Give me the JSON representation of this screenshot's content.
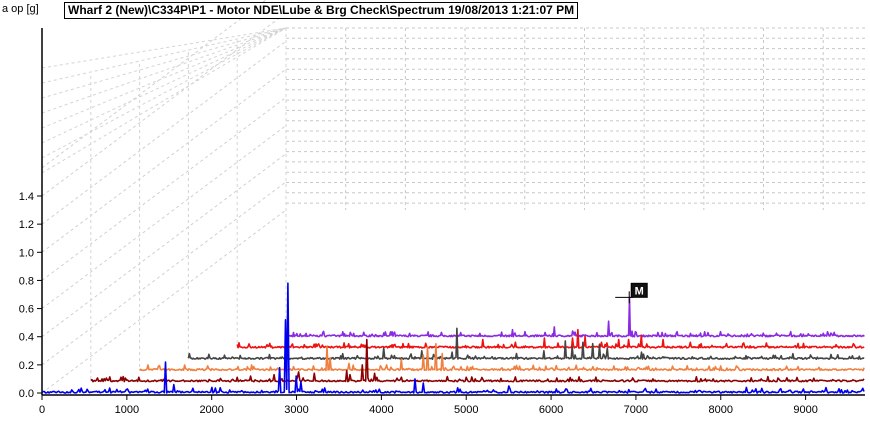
{
  "header": {
    "title": "Wharf 2 (New)\\C334P\\P1 - Motor NDE\\Lube & Brg Check\\Spectrum 19/08/2013 1:21:07 PM",
    "unit_label": "a op [g]"
  },
  "chart_data": {
    "type": "line",
    "subtype": "waterfall-3d",
    "title": "Wharf 2 (New)\\C334P\\P1 - Motor NDE\\Lube & Brg Check\\Spectrum 19/08/2013 1:21:07 PM",
    "ylabel": "a op [g]",
    "xlabel": "",
    "xlim": [
      0,
      9700
    ],
    "ylim": [
      0,
      1.6
    ],
    "x_ticks": [
      0,
      1000,
      2000,
      3000,
      4000,
      5000,
      6000,
      7000,
      8000,
      9000
    ],
    "y_ticks": [
      0.0,
      0.2,
      0.4,
      0.6,
      0.8,
      1.0,
      1.2,
      1.4
    ],
    "y_tick_labels": [
      "0.0",
      "0.2",
      "0.4",
      "0.6",
      "0.8",
      "1.0",
      "1.2",
      "1.4"
    ],
    "grid": true,
    "marker": {
      "label": "M",
      "series": 5,
      "x": 5750
    },
    "series": [
      {
        "color": "#0000ee",
        "baseline": 0.0,
        "peaks": [
          [
            1450,
            0.22
          ],
          [
            1550,
            0.06
          ],
          [
            2000,
            0.04
          ],
          [
            2800,
            0.18
          ],
          [
            2870,
            0.52
          ],
          [
            2900,
            0.78
          ],
          [
            3000,
            0.12
          ],
          [
            3050,
            0.08
          ],
          [
            4400,
            0.1
          ],
          [
            4500,
            0.07
          ],
          [
            5500,
            0.05
          ],
          [
            8300,
            0.04
          ]
        ]
      },
      {
        "color": "#8b0000",
        "baseline": 0.08,
        "peaks": [
          [
            2000,
            0.04
          ],
          [
            2300,
            0.05
          ],
          [
            2600,
            0.07
          ],
          [
            2800,
            0.06
          ],
          [
            3200,
            0.08
          ],
          [
            3250,
            0.05
          ],
          [
            3400,
            0.12
          ],
          [
            3460,
            0.3
          ],
          [
            3550,
            0.06
          ],
          [
            4900,
            0.03
          ],
          [
            6000,
            0.03
          ],
          [
            8400,
            0.02
          ]
        ]
      },
      {
        "color": "#f08040",
        "baseline": 0.16,
        "peaks": [
          [
            1500,
            0.04
          ],
          [
            2500,
            0.17
          ],
          [
            2550,
            0.09
          ],
          [
            2800,
            0.05
          ],
          [
            3300,
            0.04
          ],
          [
            3500,
            0.08
          ],
          [
            3800,
            0.11
          ],
          [
            3850,
            0.17
          ],
          [
            3960,
            0.19
          ],
          [
            4050,
            0.12
          ],
          [
            4200,
            0.03
          ],
          [
            6800,
            0.03
          ]
        ]
      },
      {
        "color": "#444444",
        "baseline": 0.24,
        "peaks": [
          [
            2800,
            0.08
          ],
          [
            3350,
            0.06
          ],
          [
            3780,
            0.05
          ],
          [
            3850,
            0.22
          ],
          [
            5100,
            0.06
          ],
          [
            5400,
            0.13
          ],
          [
            5500,
            0.09
          ],
          [
            5650,
            0.12
          ],
          [
            5800,
            0.11
          ],
          [
            5900,
            0.1
          ],
          [
            6000,
            0.08
          ],
          [
            6500,
            0.05
          ]
        ]
      },
      {
        "color": "#ee1111",
        "baseline": 0.32,
        "peaks": [
          [
            3800,
            0.06
          ],
          [
            4300,
            0.04
          ],
          [
            4750,
            0.07
          ],
          [
            5180,
            0.07
          ],
          [
            5270,
            0.13
          ],
          [
            5380,
            0.08
          ],
          [
            5900,
            0.06
          ],
          [
            6050,
            0.06
          ],
          [
            6250,
            0.09
          ],
          [
            6580,
            0.06
          ],
          [
            7000,
            0.04
          ]
        ]
      },
      {
        "color": "#8a2be2",
        "baseline": 0.4,
        "peaks": [
          [
            3800,
            0.05
          ],
          [
            4500,
            0.07
          ],
          [
            4800,
            0.04
          ],
          [
            5400,
            0.11
          ],
          [
            5750,
            0.28
          ],
          [
            5800,
            0.04
          ],
          [
            6300,
            0.03
          ],
          [
            7400,
            0.02
          ]
        ]
      }
    ]
  }
}
